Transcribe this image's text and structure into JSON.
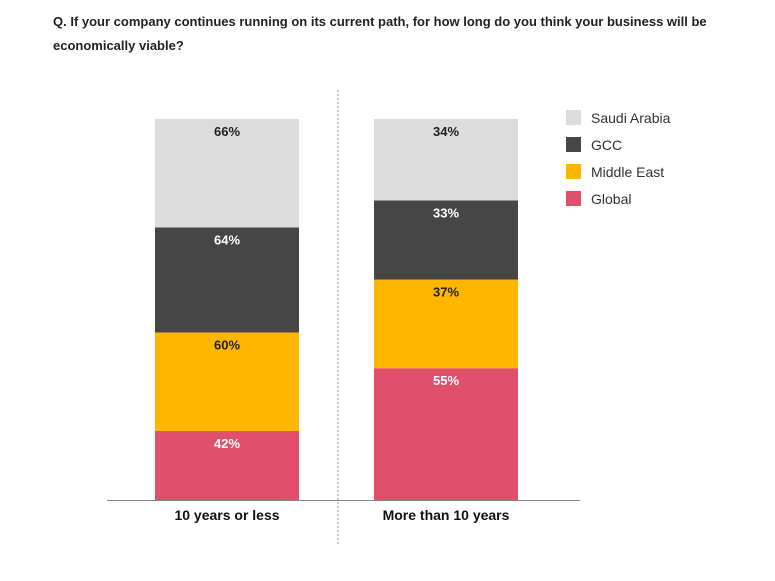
{
  "chart_data": {
    "type": "bar",
    "stacked": true,
    "normalized": true,
    "title": "Q. If your company continues running on its current path, for how long do you think your business will be economically viable?",
    "categories": [
      "10 years or less",
      "More than 10 years"
    ],
    "series": [
      {
        "name": "Global",
        "color": "#e0506a",
        "label_color": "#ffffff",
        "values": [
          42,
          55
        ]
      },
      {
        "name": "Middle East",
        "color": "#ffb600",
        "label_color": "#222222",
        "values": [
          60,
          37
        ]
      },
      {
        "name": "GCC",
        "color": "#464646",
        "label_color": "#ffffff",
        "values": [
          64,
          33
        ]
      },
      {
        "name": "Saudi Arabia",
        "color": "#dcdcdc",
        "label_color": "#222222",
        "values": [
          66,
          34
        ]
      }
    ],
    "legend_order": [
      "Saudi Arabia",
      "GCC",
      "Middle East",
      "Global"
    ],
    "value_suffix": "%",
    "legend_position": "top-right",
    "xlabel": "",
    "ylabel": "",
    "grid": false
  }
}
